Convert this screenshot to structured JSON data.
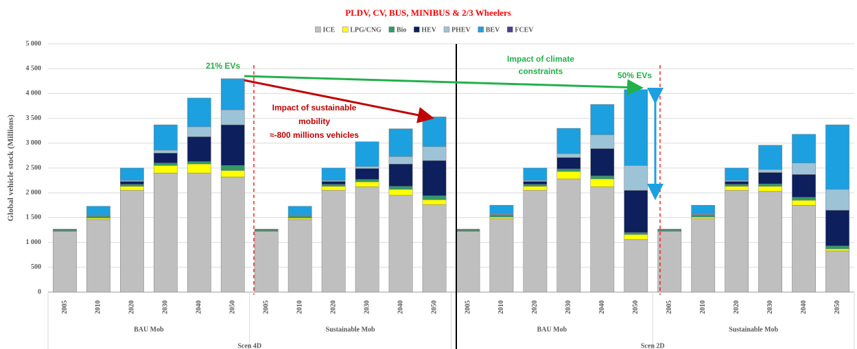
{
  "chart_data": {
    "type": "stacked_bar",
    "title": "PLDV, CV, BUS, MINIBUS & 2/3 Wheelers",
    "y_label": "Global vehicle stock (Millions)",
    "categories": [
      "2005",
      "2010",
      "2020",
      "2030",
      "2040",
      "2050",
      "2005",
      "2010",
      "2020",
      "2030",
      "2040",
      "2050",
      "2005",
      "2010",
      "2020",
      "2030",
      "2040",
      "2050",
      "2005",
      "2010",
      "2020",
      "2030",
      "2040",
      "2050"
    ],
    "groups": [
      "BAU Mob",
      "Sustainable Mob",
      "BAU Mob",
      "Sustainable Mob"
    ],
    "scenarios": [
      "Scen 4D",
      "Scen 2D"
    ],
    "series": [
      {
        "name": "ICE",
        "color": "#bfbfbf",
        "values": [
          1220,
          1460,
          2050,
          2400,
          2400,
          2320,
          1220,
          1460,
          2050,
          2120,
          1950,
          1760,
          1220,
          1480,
          2050,
          2280,
          2120,
          1060,
          1220,
          1480,
          2050,
          2030,
          1750,
          830
        ]
      },
      {
        "name": "LPG/CNG",
        "color": "#ffff00",
        "values": [
          10,
          30,
          80,
          150,
          180,
          130,
          10,
          30,
          80,
          100,
          120,
          100,
          10,
          30,
          80,
          150,
          160,
          100,
          10,
          30,
          80,
          100,
          100,
          40
        ]
      },
      {
        "name": "Bio",
        "color": "#339966",
        "values": [
          20,
          40,
          40,
          50,
          50,
          100,
          20,
          40,
          40,
          50,
          60,
          80,
          20,
          40,
          40,
          50,
          60,
          40,
          20,
          40,
          40,
          50,
          60,
          60
        ]
      },
      {
        "name": "HEV",
        "color": "#0d1f5c",
        "values": [
          10,
          10,
          60,
          200,
          500,
          820,
          10,
          10,
          60,
          220,
          450,
          710,
          10,
          10,
          60,
          230,
          550,
          850,
          10,
          10,
          60,
          230,
          460,
          720
        ]
      },
      {
        "name": "PHEV",
        "color": "#9dc3d7",
        "values": [
          0,
          10,
          20,
          60,
          200,
          300,
          0,
          10,
          20,
          40,
          150,
          280,
          0,
          10,
          20,
          80,
          280,
          500,
          0,
          10,
          20,
          60,
          230,
          420
        ]
      },
      {
        "name": "BEV",
        "color": "#1ca0e0",
        "values": [
          10,
          180,
          250,
          510,
          580,
          630,
          10,
          180,
          250,
          500,
          560,
          600,
          10,
          180,
          250,
          510,
          610,
          1530,
          10,
          180,
          250,
          490,
          580,
          1300
        ]
      },
      {
        "name": "FCEV",
        "color": "#4b3d8f",
        "values": [
          0,
          0,
          0,
          0,
          0,
          0,
          0,
          0,
          0,
          0,
          0,
          0,
          0,
          0,
          0,
          0,
          0,
          0,
          0,
          0,
          0,
          0,
          0,
          0
        ]
      }
    ],
    "ylim": [
      0,
      5000
    ],
    "yticks": [
      0,
      500,
      {
        "value": 1000,
        "label": "1 000"
      },
      {
        "value": 1500,
        "label": "1 500"
      },
      {
        "value": 2000,
        "label": "2 000"
      },
      {
        "value": 2500,
        "label": "2 500"
      },
      {
        "value": 3000,
        "label": "3 000"
      },
      {
        "value": 3500,
        "label": "3 500"
      },
      {
        "value": 4000,
        "label": "4 000"
      },
      {
        "value": 4500,
        "label": "4 500"
      },
      {
        "value": 5000,
        "label": "5 000"
      }
    ],
    "grid": true,
    "legend": "top",
    "annotations": [
      "21% EVs",
      "50% EVs",
      "Impact  of sustainable",
      "mobility",
      "≈-800 millions vehicles",
      "Impact  of climate",
      "constraints"
    ]
  }
}
